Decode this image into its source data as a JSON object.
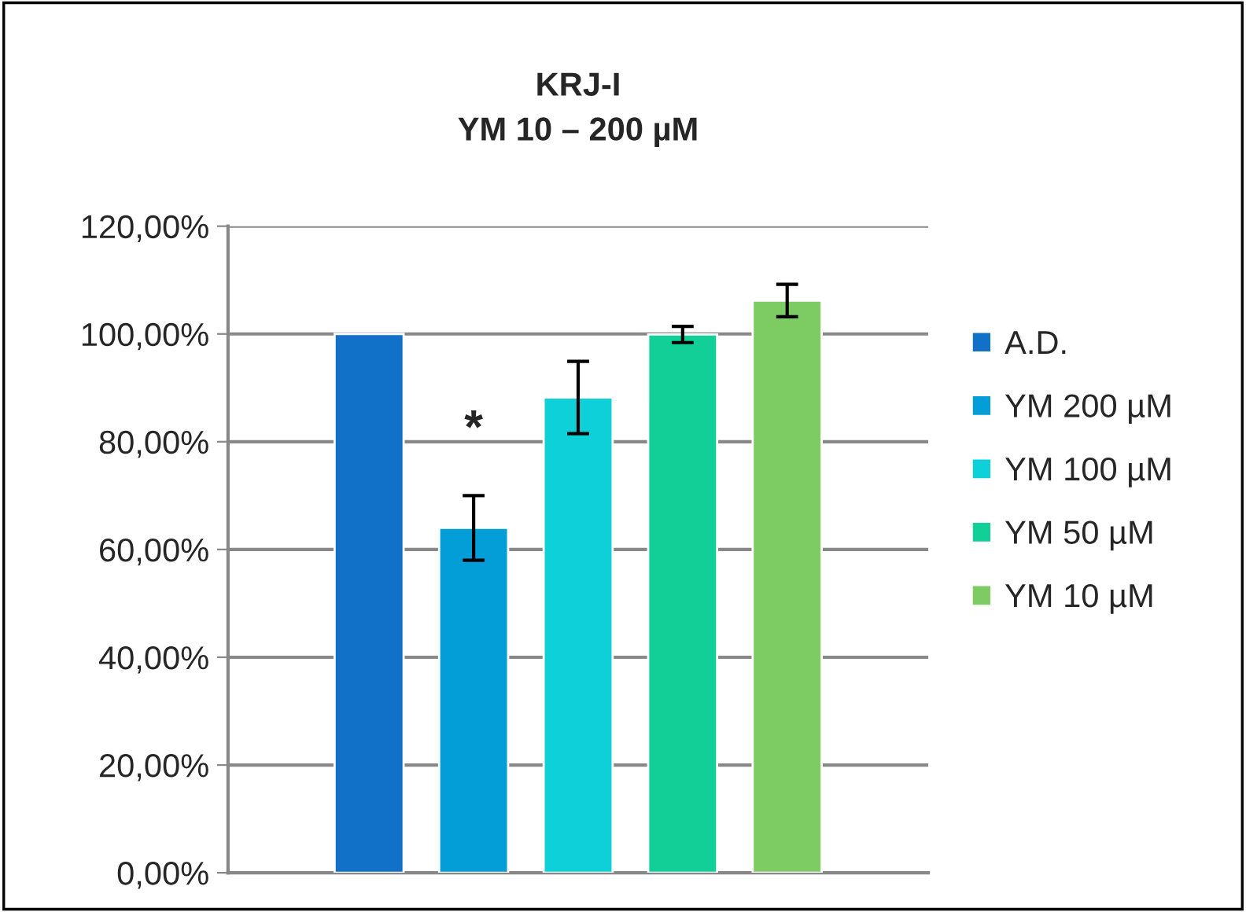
{
  "chart_data": {
    "type": "bar",
    "title": "KRJ-I\nYM 10 – 200 µM",
    "categories": [
      null
    ],
    "series": [
      {
        "name": "A.D.",
        "color": "#1170c8",
        "values": [
          100
        ],
        "errors": [
          null
        ]
      },
      {
        "name": "YM 200 µM",
        "color": "#039dd8",
        "values": [
          64
        ],
        "errors": [
          6
        ]
      },
      {
        "name": "YM 100 µM",
        "color": "#0dd0d8",
        "values": [
          88.2
        ],
        "errors": [
          6.7
        ]
      },
      {
        "name": "YM 50 µM",
        "color": "#12cf98",
        "values": [
          99.9
        ],
        "errors": [
          1.5
        ]
      },
      {
        "name": "YM 10 µM",
        "color": "#7dcb63",
        "values": [
          106.2
        ],
        "errors": [
          3
        ]
      }
    ],
    "ylim": [
      0,
      120
    ],
    "yticks": [
      {
        "value": 0,
        "label": "0,00%"
      },
      {
        "value": 20,
        "label": "20,00%"
      },
      {
        "value": 40,
        "label": "40,00%"
      },
      {
        "value": 60,
        "label": "60,00%"
      },
      {
        "value": 80,
        "label": "80,00%"
      },
      {
        "value": 100,
        "label": "100,00%"
      },
      {
        "value": 120,
        "label": "120,00%"
      }
    ],
    "grid": "y",
    "legend": "right",
    "annotations": [
      "*"
    ]
  }
}
